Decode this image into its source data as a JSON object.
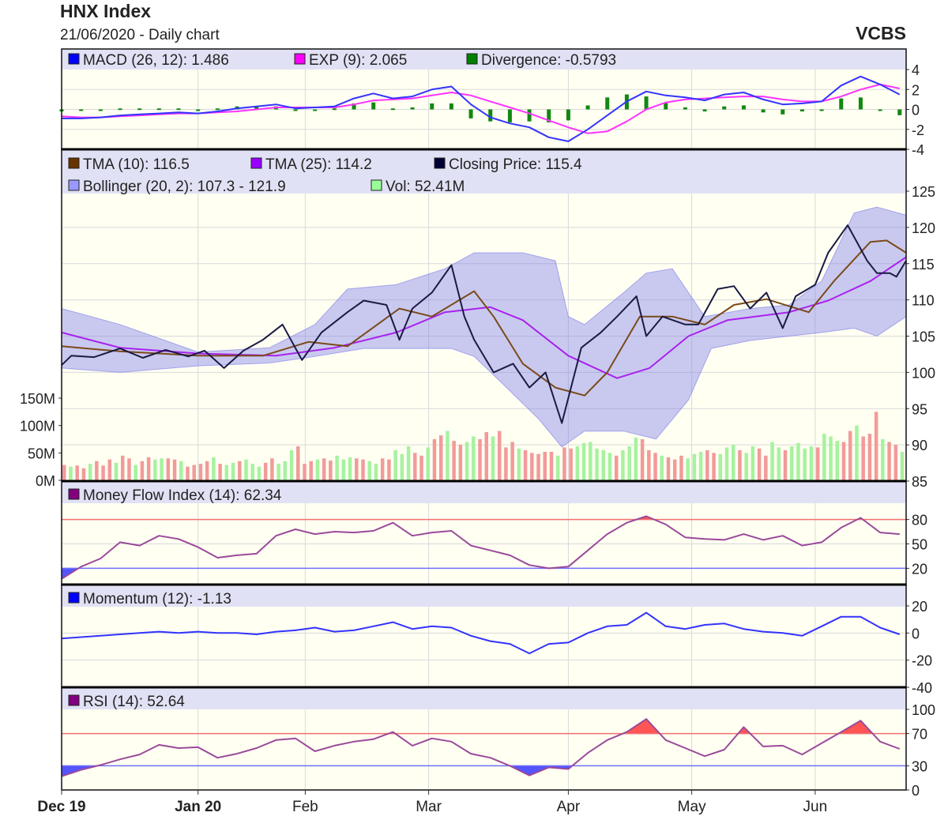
{
  "header": {
    "title": "HNX Index",
    "subtitle": "21/06/2020 - Daily chart",
    "brand": "VCBS"
  },
  "colors": {
    "band": "#e1e1f5",
    "plot": "#fffff2",
    "grid": "#d9d9d9",
    "up": "#a6f2a0",
    "down": "#f29a9a",
    "overbought": "#f07070",
    "oversold": "#7070ff"
  },
  "chart_data": {
    "type": "line",
    "title": "HNX Index",
    "x_axis": {
      "range": [
        0,
        130
      ],
      "ticks": [
        {
          "label": "Dec 19",
          "t": 0,
          "bold": true
        },
        {
          "label": "Jan 20",
          "t": 21,
          "bold": true
        },
        {
          "label": "Feb",
          "t": 37.5
        },
        {
          "label": "Mar",
          "t": 56.5
        },
        {
          "label": "Apr",
          "t": 78
        },
        {
          "label": "May",
          "t": 97
        },
        {
          "label": "Jun",
          "t": 116
        }
      ]
    },
    "macd": {
      "legend": [
        {
          "label": "MACD (26, 12): 1.486",
          "color": "#0000ff"
        },
        {
          "label": "EXP (9): 2.065",
          "color": "#ff00ff"
        },
        {
          "label": "Divergence: -0.5793",
          "color": "#008000"
        }
      ],
      "ylim": [
        -4,
        4
      ],
      "yticks": [
        "4",
        "2",
        "0",
        "-2",
        "-4"
      ],
      "ytick_values": [
        4,
        2,
        0,
        -2,
        -4
      ],
      "t_step": 3,
      "macd": [
        -0.9,
        -0.9,
        -0.8,
        -0.6,
        -0.5,
        -0.4,
        -0.3,
        -0.4,
        -0.2,
        0.1,
        0.3,
        0.5,
        0.1,
        0.2,
        0.3,
        1.1,
        1.6,
        1.1,
        1.3,
        2.0,
        2.3,
        0.5,
        -0.8,
        -1.4,
        -1.8,
        -2.8,
        -3.2,
        -2.0,
        -0.6,
        0.8,
        1.8,
        1.4,
        1.2,
        0.9,
        1.5,
        1.7,
        1.0,
        0.5,
        0.6,
        0.8,
        2.4,
        3.3,
        2.5,
        1.5
      ],
      "exp": [
        -0.7,
        -0.8,
        -0.8,
        -0.7,
        -0.6,
        -0.5,
        -0.4,
        -0.4,
        -0.3,
        -0.2,
        0,
        0.2,
        0.2,
        0.2,
        0.2,
        0.5,
        0.9,
        1.0,
        1.1,
        1.4,
        1.7,
        1.4,
        0.8,
        0.2,
        -0.4,
        -1.1,
        -1.8,
        -2.4,
        -2.2,
        -1.2,
        0,
        0.7,
        1.0,
        1.1,
        1.2,
        1.3,
        1.3,
        1.0,
        0.8,
        0.8,
        1.3,
        2.0,
        2.5,
        2.1
      ],
      "divergence": [
        -0.2,
        -0.1,
        0,
        0.1,
        0.1,
        0.1,
        0.1,
        0,
        0.1,
        0.3,
        0.3,
        0.3,
        -0.1,
        0,
        0.1,
        0.6,
        0.7,
        0.1,
        0.2,
        0.6,
        0.6,
        -0.9,
        -1.2,
        -1.3,
        -1.2,
        -1.3,
        -1.1,
        0.4,
        1.2,
        1.5,
        1.3,
        0.7,
        0.2,
        -0.2,
        0.3,
        0.4,
        -0.3,
        -0.5,
        -0.2,
        0,
        1.1,
        1.2,
        0,
        -0.58
      ]
    },
    "price": {
      "legend": [
        {
          "label": "TMA (10): 116.5",
          "color": "#663300"
        },
        {
          "label": "TMA (25): 114.2",
          "color": "#9900ff"
        },
        {
          "label": "Closing Price: 115.4",
          "color": "#000033"
        }
      ],
      "legend2": [
        {
          "label": "Bollinger (20, 2): 107.3 - 121.9",
          "color": "#9999ff"
        },
        {
          "label": "Vol: 52.41M",
          "color": "#99ff99"
        }
      ],
      "ylim": [
        85,
        125
      ],
      "yticks": [
        "125",
        "120",
        "115",
        "110",
        "105",
        "100",
        "95",
        "90",
        "85"
      ],
      "ytick_values": [
        125,
        120,
        115,
        110,
        105,
        100,
        95,
        90,
        85
      ],
      "close": [
        [
          0,
          101
        ],
        [
          1.5,
          102.3
        ],
        [
          5,
          102.1
        ],
        [
          9,
          103.3
        ],
        [
          12.5,
          102
        ],
        [
          16,
          103.1
        ],
        [
          19.5,
          102.2
        ],
        [
          22,
          103
        ],
        [
          25,
          100.6
        ],
        [
          28,
          103
        ],
        [
          31,
          104.5
        ],
        [
          34,
          106.6
        ],
        [
          37,
          101.7
        ],
        [
          40,
          105.5
        ],
        [
          44,
          108.3
        ],
        [
          46.5,
          109.9
        ],
        [
          50,
          109.3
        ],
        [
          52,
          104.5
        ],
        [
          54,
          108.8
        ],
        [
          57,
          111
        ],
        [
          60,
          114.8
        ],
        [
          62,
          107.7
        ],
        [
          63.5,
          104.5
        ],
        [
          66.5,
          100
        ],
        [
          69.5,
          101.2
        ],
        [
          72,
          97.9
        ],
        [
          74.5,
          100
        ],
        [
          77,
          93
        ],
        [
          80,
          103.4
        ],
        [
          83,
          105.5
        ],
        [
          85.5,
          107.7
        ],
        [
          88.5,
          110.5
        ],
        [
          90,
          105
        ],
        [
          92.5,
          107.7
        ],
        [
          96,
          106.6
        ],
        [
          98,
          106.6
        ],
        [
          101,
          111.5
        ],
        [
          103.5,
          111.9
        ],
        [
          106,
          108.8
        ],
        [
          108.5,
          111
        ],
        [
          111,
          106.1
        ],
        [
          113,
          110.5
        ],
        [
          116,
          112.1
        ],
        [
          118,
          116.5
        ],
        [
          121,
          120.3
        ],
        [
          124,
          115.4
        ],
        [
          125.5,
          113.7
        ],
        [
          127.5,
          113.7
        ],
        [
          128.5,
          113.2
        ],
        [
          130,
          115.4
        ]
      ],
      "tma10": [
        [
          0,
          103.6
        ],
        [
          9,
          102.9
        ],
        [
          21,
          102.3
        ],
        [
          31,
          102.3
        ],
        [
          38,
          104.2
        ],
        [
          44,
          103.6
        ],
        [
          52,
          108.8
        ],
        [
          57,
          107.7
        ],
        [
          63.5,
          111.2
        ],
        [
          66.5,
          107.7
        ],
        [
          71,
          101.2
        ],
        [
          76,
          97.9
        ],
        [
          80.5,
          96.8
        ],
        [
          84,
          100
        ],
        [
          89,
          107.7
        ],
        [
          94,
          107.7
        ],
        [
          99,
          106.6
        ],
        [
          103.5,
          109.3
        ],
        [
          108.5,
          110.1
        ],
        [
          115,
          108.3
        ],
        [
          119,
          112.7
        ],
        [
          124.5,
          118
        ],
        [
          127,
          118.2
        ],
        [
          130,
          116.5
        ]
      ],
      "tma25": [
        [
          0,
          105.5
        ],
        [
          9,
          103.4
        ],
        [
          21,
          102.6
        ],
        [
          33,
          102.3
        ],
        [
          42,
          103.4
        ],
        [
          51.5,
          105.5
        ],
        [
          59,
          108.3
        ],
        [
          66,
          109
        ],
        [
          71,
          107.2
        ],
        [
          78,
          102.3
        ],
        [
          85.5,
          99.2
        ],
        [
          90.5,
          100.6
        ],
        [
          96.5,
          105
        ],
        [
          102.5,
          107.2
        ],
        [
          112,
          108.3
        ],
        [
          118,
          109.9
        ],
        [
          124.5,
          112.6
        ],
        [
          130,
          115.9
        ]
      ],
      "boll_upper": [
        [
          0,
          108.8
        ],
        [
          9,
          106.6
        ],
        [
          21,
          102.8
        ],
        [
          32,
          103.4
        ],
        [
          39,
          106.6
        ],
        [
          44,
          111.5
        ],
        [
          51.5,
          112.1
        ],
        [
          59,
          114.3
        ],
        [
          63.5,
          116.5
        ],
        [
          71,
          116.5
        ],
        [
          76,
          115.4
        ],
        [
          78,
          107.7
        ],
        [
          80.5,
          106.6
        ],
        [
          86.5,
          111
        ],
        [
          90,
          113.7
        ],
        [
          94,
          114.3
        ],
        [
          99,
          107.7
        ],
        [
          106,
          108.8
        ],
        [
          112,
          109.3
        ],
        [
          117,
          112.6
        ],
        [
          122,
          122
        ],
        [
          125.5,
          122.8
        ],
        [
          130,
          121.7
        ]
      ],
      "boll_lower": [
        [
          0,
          100.6
        ],
        [
          9,
          100
        ],
        [
          21,
          100.9
        ],
        [
          32,
          101.3
        ],
        [
          39,
          102.2
        ],
        [
          46.5,
          103.3
        ],
        [
          54,
          103.3
        ],
        [
          60,
          103.3
        ],
        [
          63.5,
          102.2
        ],
        [
          68.5,
          97.9
        ],
        [
          73.5,
          93.5
        ],
        [
          77,
          89.7
        ],
        [
          80.5,
          91.9
        ],
        [
          86.5,
          91.9
        ],
        [
          91.5,
          90.8
        ],
        [
          96.5,
          96.2
        ],
        [
          100,
          103.3
        ],
        [
          106,
          104.4
        ],
        [
          112,
          105
        ],
        [
          117,
          105.5
        ],
        [
          122,
          106.1
        ],
        [
          125.5,
          105
        ],
        [
          130,
          107.7
        ]
      ],
      "volume": {
        "ylim": [
          0,
          150
        ],
        "yticks": [
          "150M",
          "100M",
          "50M",
          "0M"
        ],
        "ytick_values": [
          150,
          100,
          50,
          0
        ],
        "unit": "M",
        "values": [
          28,
          25,
          27,
          22,
          30,
          35,
          27,
          38,
          32,
          45,
          40,
          28,
          35,
          42,
          38,
          40,
          40,
          38,
          35,
          25,
          28,
          30,
          35,
          42,
          30,
          28,
          32,
          35,
          38,
          30,
          25,
          32,
          40,
          30,
          35,
          55,
          62,
          30,
          35,
          38,
          40,
          36,
          45,
          38,
          42,
          40,
          38,
          35,
          30,
          40,
          38,
          55,
          48,
          62,
          50,
          45,
          60,
          75,
          82,
          90,
          72,
          65,
          70,
          80,
          75,
          88,
          80,
          90,
          60,
          70,
          58,
          55,
          50,
          48,
          52,
          52,
          45,
          60,
          58,
          62,
          68,
          70,
          58,
          55,
          50,
          45,
          55,
          62,
          78,
          75,
          55,
          50,
          45,
          42,
          38,
          45,
          40,
          48,
          52,
          55,
          50,
          48,
          60,
          65,
          55,
          50,
          62,
          58,
          45,
          70,
          60,
          55,
          62,
          68,
          58,
          62,
          60,
          85,
          80,
          72,
          70,
          90,
          100,
          80,
          85,
          125,
          75,
          70,
          65,
          52
        ],
        "direction": "dudduddduddudduuddudddduduuduuudduuudddudduuudduudduuudduddudduuddudddudddddudduuuuuuduuuddduddduuudduuuduudduuduuuuduuudduddduddudud"
      }
    },
    "mfi": {
      "legend": [
        {
          "label": "Money Flow Index (14): 62.34",
          "color": "#800080"
        }
      ],
      "ylim": [
        0,
        100
      ],
      "yticks": [
        "80",
        "50",
        "20"
      ],
      "ytick_values": [
        80,
        50,
        20
      ],
      "t_step": 3,
      "values": [
        7,
        22,
        32,
        52,
        48,
        60,
        56,
        46,
        33,
        36,
        38,
        60,
        68,
        62,
        65,
        64,
        66,
        76,
        60,
        64,
        66,
        48,
        42,
        36,
        24,
        20,
        22,
        42,
        62,
        76,
        84,
        74,
        58,
        56,
        55,
        62,
        55,
        60,
        48,
        52,
        70,
        82,
        64,
        62
      ]
    },
    "momentum": {
      "legend": [
        {
          "label": "Momentum (12): -1.13",
          "color": "#0000ff"
        }
      ],
      "ylim": [
        -40,
        20
      ],
      "yticks": [
        "20",
        "0",
        "-20",
        "-40"
      ],
      "ytick_values": [
        20,
        0,
        -20,
        -40
      ],
      "t_step": 3,
      "values": [
        -4,
        -3,
        -2,
        -1,
        0,
        1,
        0,
        1,
        0,
        0,
        -1,
        1,
        2,
        4,
        1,
        2,
        5,
        8,
        3,
        5,
        4,
        -2,
        -6,
        -8,
        -15,
        -8,
        -7,
        0,
        5,
        6,
        15,
        5,
        3,
        6,
        7,
        3,
        1,
        0,
        -2,
        5,
        12,
        12,
        4,
        -1
      ]
    },
    "rsi": {
      "legend": [
        {
          "label": "RSI (14): 52.64",
          "color": "#800080"
        }
      ],
      "ylim": [
        0,
        100
      ],
      "yticks": [
        "100",
        "70",
        "30",
        "0"
      ],
      "ytick_values": [
        100,
        70,
        30,
        0
      ],
      "t_step": 3,
      "values": [
        17,
        25,
        31,
        38,
        44,
        56,
        52,
        53,
        40,
        45,
        52,
        62,
        64,
        48,
        55,
        60,
        63,
        72,
        55,
        64,
        60,
        45,
        40,
        30,
        18,
        28,
        26,
        46,
        62,
        72,
        88,
        62,
        52,
        42,
        50,
        78,
        54,
        55,
        44,
        58,
        72,
        86,
        60,
        51
      ]
    }
  }
}
